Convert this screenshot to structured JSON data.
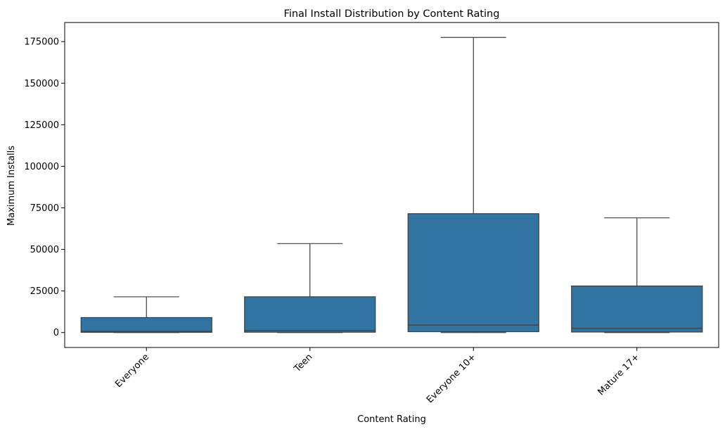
{
  "chart_data": {
    "type": "boxplot",
    "title": "Final Install Distribution by Content Rating",
    "xlabel": "Content Rating",
    "ylabel": "Maximum Installs",
    "categories": [
      "Everyone",
      "Teen",
      "Everyone 10+",
      "Mature 17+"
    ],
    "boxes": [
      {
        "whisker_low": 0,
        "q1": 100,
        "median": 700,
        "q3": 9000,
        "whisker_high": 21500
      },
      {
        "whisker_low": 0,
        "q1": 200,
        "median": 1200,
        "q3": 21500,
        "whisker_high": 53500
      },
      {
        "whisker_low": 0,
        "q1": 500,
        "median": 4500,
        "q3": 71500,
        "whisker_high": 177500
      },
      {
        "whisker_low": 0,
        "q1": 300,
        "median": 2500,
        "q3": 28000,
        "whisker_high": 69000
      }
    ],
    "y_ticks": [
      0,
      25000,
      50000,
      75000,
      100000,
      125000,
      150000,
      175000
    ],
    "y_tick_labels": [
      "0",
      "25000",
      "50000",
      "75000",
      "100000",
      "125000",
      "150000",
      "175000"
    ],
    "ylim": [
      -9000,
      186500
    ],
    "box_color": "#3274a1",
    "line_color": "#3d3d3d",
    "grid": false,
    "x_tick_rotation": "45deg"
  }
}
